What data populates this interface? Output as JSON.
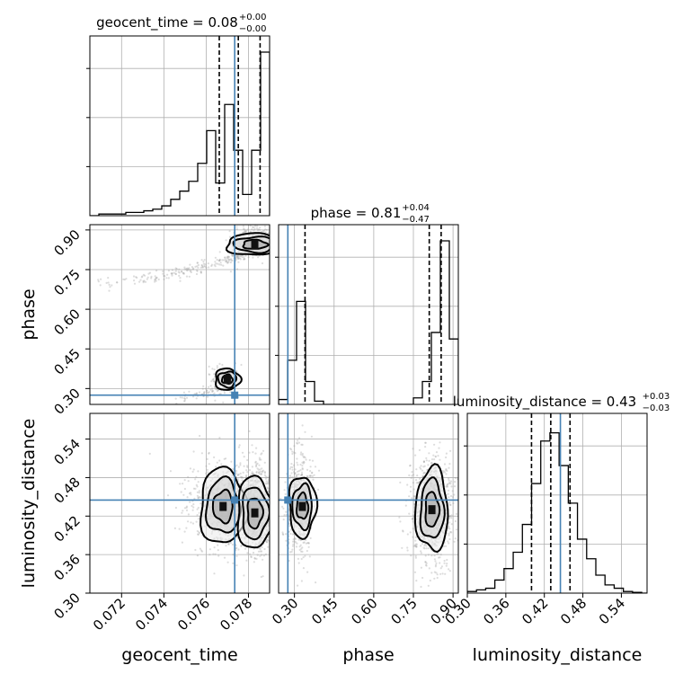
{
  "chart_data": {
    "type": "corner",
    "parameters": [
      "geocent_time",
      "phase",
      "luminosity_distance"
    ],
    "truths": {
      "geocent_time": 0.07735,
      "phase": 0.275,
      "luminosity_distance": 0.445
    },
    "titles": [
      {
        "param": "geocent_time",
        "text": "geocent_time = 0.08",
        "plus": "+0.00",
        "minus": "−0.00"
      },
      {
        "param": "phase",
        "text": "phase = 0.81",
        "plus": "+0.04",
        "minus": "−0.47"
      },
      {
        "param": "luminosity_distance",
        "text": "luminosity_distance = 0.43",
        "plus": "+0.03",
        "minus": "−0.03"
      }
    ],
    "axis_labels": {
      "x": [
        "geocent_time",
        "phase",
        "luminosity_distance"
      ],
      "y": [
        "phase",
        "luminosity_distance"
      ]
    },
    "ranges": {
      "geocent_time": [
        0.0705,
        0.079
      ],
      "phase": [
        0.24,
        0.92
      ],
      "luminosity_distance": [
        0.3,
        0.58
      ]
    },
    "ticks": {
      "geocent_time": {
        "values": [
          0.072,
          0.074,
          0.076,
          0.078
        ],
        "labels": [
          "0.072",
          "0.074",
          "0.076",
          "0.078"
        ]
      },
      "phase": {
        "values": [
          0.3,
          0.45,
          0.6,
          0.75,
          0.9
        ],
        "labels": [
          "0.30",
          "0.45",
          "0.60",
          "0.75",
          "0.90"
        ]
      },
      "luminosity_distance": {
        "values": [
          0.3,
          0.36,
          0.42,
          0.48,
          0.54
        ],
        "labels": [
          "0.30",
          "0.36",
          "0.42",
          "0.48",
          "0.54"
        ]
      }
    },
    "histograms": {
      "geocent_time": {
        "edges_start": 0.0705,
        "bin_width": 0.000425,
        "counts": [
          0.0,
          0.01,
          0.01,
          0.01,
          0.02,
          0.02,
          0.03,
          0.04,
          0.06,
          0.1,
          0.15,
          0.21,
          0.32,
          0.52,
          0.2,
          0.68,
          0.4,
          0.13,
          0.4,
          1.0,
          0.0
        ],
        "quantiles": [
          0.07662,
          0.07752,
          0.07855
        ]
      },
      "phase": {
        "edges_start": 0.24,
        "bin_width": 0.034,
        "counts": [
          0.03,
          0.27,
          0.63,
          0.14,
          0.02,
          0.0,
          0.0,
          0.0,
          0.0,
          0.0,
          0.0,
          0.0,
          0.0,
          0.0,
          0.0,
          0.04,
          0.14,
          0.44,
          1.0,
          0.4
        ],
        "quantiles": [
          0.34,
          0.81,
          0.855
        ]
      },
      "luminosity_distance": {
        "edges_start": 0.3,
        "bin_width": 0.0143,
        "counts": [
          0.01,
          0.02,
          0.03,
          0.08,
          0.15,
          0.25,
          0.42,
          0.67,
          0.93,
          0.98,
          0.78,
          0.55,
          0.33,
          0.21,
          0.11,
          0.05,
          0.03,
          0.01,
          0.005,
          0.0
        ],
        "quantiles": [
          0.4,
          0.43,
          0.46
        ]
      }
    },
    "grid": true,
    "colors": {
      "truth": "#4682b4",
      "contour": "#000000",
      "points": "#bdbdbd",
      "grid": "#b0b0b0"
    }
  }
}
